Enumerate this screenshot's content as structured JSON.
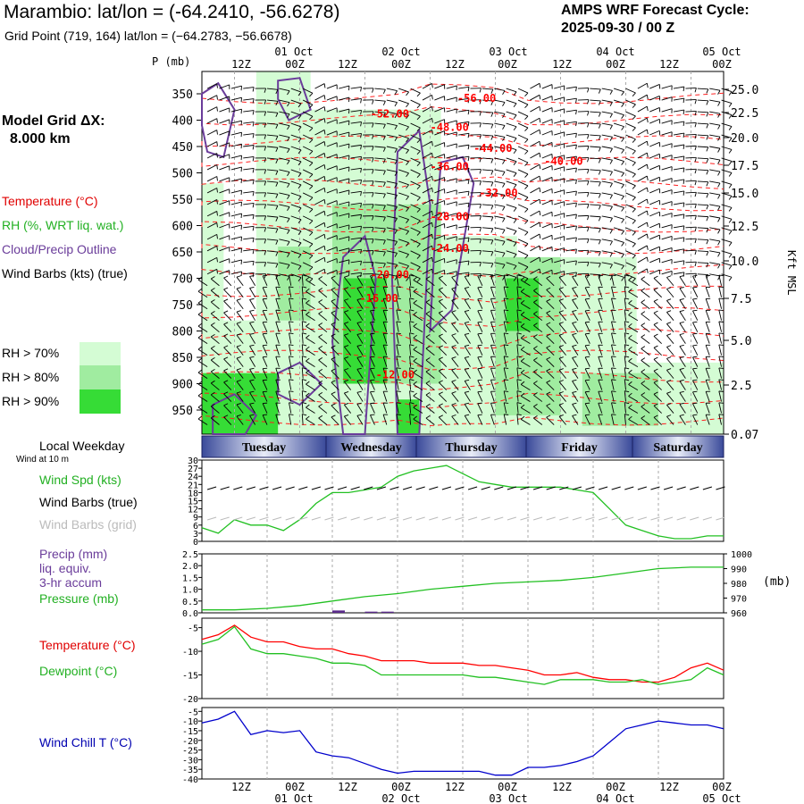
{
  "header": {
    "title": "Marambio:  lat/lon = (-64.2410, -56.6278)",
    "cycle_line1": "AMPS WRF Forecast Cycle:",
    "cycle_line2": "2025-09-30 / 00  Z",
    "grid_point": "Grid Point (719, 164) lat/lon = (−64.2783, −56.6678)"
  },
  "left_panel": {
    "model_grid_label": "Model Grid ΔX:",
    "model_grid_value": "8.000 km",
    "temperature": "Temperature (°C)",
    "rh": "RH (%, WRT liq. wat.)",
    "cloud": "Cloud/Precip Outline",
    "barbs": "Wind Barbs (kts) (true)",
    "rh70": "RH > 70%",
    "rh80": "RH > 80%",
    "rh90": "RH > 90%"
  },
  "colors": {
    "rh70": "#d4fcd4",
    "rh80": "#a0eca0",
    "rh90": "#36dc36",
    "temperature": "#ff0000",
    "cloud": "#6a3c9a",
    "wind_speed": "#22c022",
    "pressure": "#22c022",
    "dewpoint": "#22c022",
    "wind_chill": "#0000cc",
    "precip": "#5a2a8a"
  },
  "time_axis": {
    "top_dates": [
      "01 Oct",
      "02 Oct",
      "03 Oct",
      "04 Oct",
      "05 Oct"
    ],
    "hours": [
      "12Z",
      "00Z",
      "12Z",
      "00Z",
      "12Z",
      "00Z",
      "12Z",
      "00Z",
      "12Z",
      "00Z"
    ],
    "bottom_dates": [
      "01 Oct",
      "02 Oct",
      "03 Oct",
      "04 Oct",
      "05 Oct"
    ]
  },
  "weekday": {
    "label": "Local Weekday",
    "days": [
      "Tuesday",
      "Wednesday",
      "Thursday",
      "Friday",
      "Saturday"
    ]
  },
  "wind_panel": {
    "subtitle": "Wind at 10 m",
    "label_speed": "Wind Spd (kts)",
    "label_true": "Wind Barbs (true)",
    "label_grid": "Wind Barbs (grid)",
    "yticks": [
      "30",
      "27",
      "24",
      "21",
      "18",
      "15",
      "12",
      "9",
      "6",
      "3",
      "0"
    ]
  },
  "precip_panel": {
    "label_1": "Precip (mm)",
    "label_2": "liq. equiv.",
    "label_3": "3-hr accum",
    "label_4": "Pressure (mb)",
    "yticks_left": [
      "2.5",
      "2.0",
      "1.5",
      "1.0",
      "0.5",
      "0.0"
    ],
    "yticks_right": [
      "1000",
      "990",
      "980",
      "970",
      "960"
    ],
    "right_unit": "(mb)"
  },
  "temp_panel": {
    "label_1": "Temperature (°C)",
    "label_2": "Dewpoint (°C)",
    "yticks": [
      "-5",
      "-10",
      "-15",
      "-20"
    ]
  },
  "chill_panel": {
    "label": "Wind Chill T (°C)",
    "yticks": [
      "-5",
      "-10",
      "-15",
      "-20",
      "-25",
      "-30",
      "-35",
      "-40"
    ]
  },
  "chart_data": [
    {
      "type": "heatmap",
      "title": "Time-height cross section",
      "ylabel": "P (mb)",
      "y2label": "Kft MSL",
      "pressure_ticks": [
        350,
        400,
        450,
        500,
        550,
        600,
        650,
        700,
        750,
        800,
        850,
        900,
        950
      ],
      "height_ticks": [
        "25.0",
        "22.5",
        "20.0",
        "17.5",
        "15.0",
        "12.5",
        "10.0",
        "7.5",
        "5.0",
        "2.5",
        "0.07"
      ],
      "ylim": [
        1000,
        320
      ],
      "temperature_contour_labels": [
        {
          "label": "-52.00",
          "hour": 31,
          "p": 395
        },
        {
          "label": "-56.00",
          "hour": 47,
          "p": 365
        },
        {
          "label": "-48.00",
          "hour": 42,
          "p": 420
        },
        {
          "label": "-44.00",
          "hour": 50,
          "p": 460
        },
        {
          "label": "-40.00",
          "hour": 63,
          "p": 485
        },
        {
          "label": "-36.00",
          "hour": 42,
          "p": 495
        },
        {
          "label": "-32.00",
          "hour": 51,
          "p": 545
        },
        {
          "label": "-28.00",
          "hour": 42,
          "p": 590
        },
        {
          "label": "-24.00",
          "hour": 42,
          "p": 650
        },
        {
          "label": "-20.00",
          "hour": 31,
          "p": 700
        },
        {
          "label": "-16.00",
          "hour": 29,
          "p": 745
        },
        {
          "label": "-12.00",
          "hour": 32,
          "p": 890
        }
      ]
    },
    {
      "type": "line",
      "title": "Wind Spd (kts)",
      "x_unit": "forecast hour",
      "ylim": [
        0,
        30
      ],
      "series": [
        {
          "name": "Wind Spd (kts)",
          "x": [
            0,
            3,
            6,
            9,
            12,
            15,
            18,
            21,
            24,
            27,
            30,
            33,
            36,
            39,
            42,
            45,
            48,
            51,
            54,
            57,
            60,
            63,
            66,
            69,
            72,
            75,
            78,
            81,
            84,
            87,
            90,
            93,
            96
          ],
          "y": [
            5,
            3,
            8,
            6,
            6,
            4,
            8,
            14,
            18,
            18,
            19,
            20,
            24,
            26,
            27,
            28,
            25,
            22,
            21,
            20,
            20,
            20,
            20,
            19,
            18,
            12,
            6,
            4,
            2,
            1,
            1,
            2,
            2
          ]
        }
      ]
    },
    {
      "type": "line",
      "title": "Precip (mm) / Pressure (mb)",
      "x_unit": "forecast hour",
      "ylim": [
        0,
        2.5
      ],
      "y2lim": [
        960,
        1000
      ],
      "bars": [
        {
          "name": "Precip (mm)",
          "x": [
            24,
            30,
            33
          ],
          "y": [
            0.1,
            0.05,
            0.05
          ]
        }
      ],
      "series": [
        {
          "name": "Pressure (mb)",
          "x": [
            0,
            6,
            12,
            18,
            24,
            30,
            36,
            42,
            48,
            54,
            60,
            66,
            72,
            78,
            84,
            90,
            96
          ],
          "y": [
            962,
            962,
            963,
            965,
            968,
            971,
            973,
            976,
            978,
            980,
            981,
            982,
            984,
            987,
            990,
            991,
            991
          ]
        }
      ]
    },
    {
      "type": "line",
      "title": "Temperature / Dewpoint (°C)",
      "x_unit": "forecast hour",
      "ylim": [
        -20,
        -3
      ],
      "series": [
        {
          "name": "Temperature (°C)",
          "x": [
            0,
            3,
            6,
            9,
            12,
            15,
            18,
            21,
            24,
            27,
            30,
            33,
            36,
            39,
            42,
            45,
            48,
            51,
            54,
            57,
            60,
            63,
            66,
            69,
            72,
            75,
            78,
            81,
            84,
            87,
            90,
            93,
            96
          ],
          "y": [
            -7.5,
            -6.5,
            -4.5,
            -7,
            -8,
            -8,
            -9,
            -9.5,
            -9.5,
            -10.5,
            -11,
            -12,
            -12,
            -12,
            -12.5,
            -12.5,
            -12.5,
            -13,
            -13,
            -13.5,
            -14,
            -15,
            -15,
            -14.5,
            -15.5,
            -16,
            -16,
            -16.5,
            -16.5,
            -15.5,
            -13.5,
            -12.5,
            -14
          ]
        },
        {
          "name": "Dewpoint (°C)",
          "x": [
            0,
            3,
            6,
            9,
            12,
            15,
            18,
            21,
            24,
            27,
            30,
            33,
            36,
            39,
            42,
            45,
            48,
            51,
            54,
            57,
            60,
            63,
            66,
            69,
            72,
            75,
            78,
            81,
            84,
            87,
            90,
            93,
            96
          ],
          "y": [
            -8.5,
            -7.5,
            -4.8,
            -9.5,
            -10.5,
            -10.5,
            -11,
            -11.5,
            -12.5,
            -12.5,
            -13,
            -15,
            -15,
            -15,
            -15,
            -15,
            -15,
            -15.5,
            -15.5,
            -16,
            -16.5,
            -17,
            -16,
            -16,
            -16,
            -16.5,
            -16.5,
            -16,
            -17,
            -16.5,
            -16,
            -13.5,
            -15
          ]
        }
      ]
    },
    {
      "type": "line",
      "title": "Wind Chill T (°C)",
      "x_unit": "forecast hour",
      "ylim": [
        -40,
        -3
      ],
      "series": [
        {
          "name": "Wind Chill T (°C)",
          "x": [
            0,
            3,
            6,
            9,
            12,
            15,
            18,
            21,
            24,
            27,
            30,
            33,
            36,
            39,
            42,
            45,
            48,
            51,
            54,
            57,
            60,
            63,
            66,
            69,
            72,
            75,
            78,
            81,
            84,
            87,
            90,
            93,
            96
          ],
          "y": [
            -11,
            -9,
            -5,
            -17,
            -15,
            -16,
            -15,
            -26,
            -28,
            -29,
            -32,
            -35,
            -37,
            -36,
            -36,
            -36,
            -36,
            -36,
            -38,
            -38,
            -34,
            -34,
            -33,
            -31,
            -28,
            -21,
            -14,
            -12,
            -10,
            -11,
            -12,
            -12,
            -14
          ]
        }
      ]
    }
  ]
}
